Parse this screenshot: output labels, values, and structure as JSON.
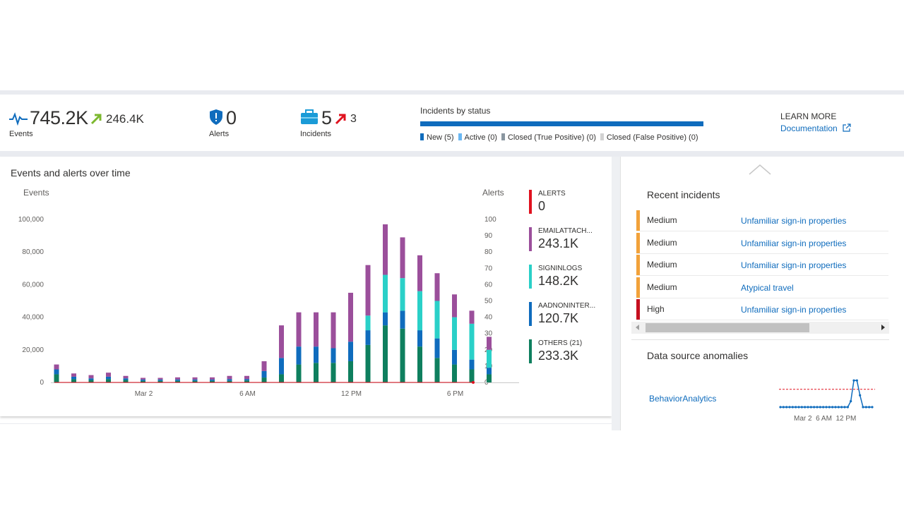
{
  "summary": {
    "events": {
      "value": "745.2K",
      "delta": "246.4K",
      "label": "Events"
    },
    "alerts": {
      "value": "0",
      "label": "Alerts"
    },
    "incidents": {
      "value": "5",
      "delta": "3",
      "label": "Incidents"
    }
  },
  "status": {
    "title": "Incidents by status",
    "legend": [
      {
        "label": "New (5)",
        "color": "#0f6cbd"
      },
      {
        "label": "Active (0)",
        "color": "#6ab7f2"
      },
      {
        "label": "Closed (True Positive) (0)",
        "color": "#8a96a0"
      },
      {
        "label": "Closed (False Positive) (0)",
        "color": "#d2d2d2"
      }
    ]
  },
  "learn_more": {
    "heading": "LEARN MORE",
    "link": "Documentation"
  },
  "events_panel": {
    "title": "Events and alerts over time"
  },
  "chart_data": {
    "type": "bar",
    "stacked": true,
    "ylabel_left": "Events",
    "ylabel_right": "Alerts",
    "ylim_left": [
      0,
      100000
    ],
    "ylim_right": [
      0,
      100
    ],
    "yticks_left": [
      "100,000",
      "80,000",
      "60,000",
      "40,000",
      "20,000",
      "0"
    ],
    "yticks_right": [
      "100",
      "90",
      "80",
      "70",
      "60",
      "50",
      "40",
      "30",
      "20",
      "10",
      "0"
    ],
    "xticks": [
      {
        "index": 5,
        "label": "Mar 2"
      },
      {
        "index": 11,
        "label": "6 AM"
      },
      {
        "index": 17,
        "label": "12 PM"
      },
      {
        "index": 23,
        "label": "6 PM"
      }
    ],
    "series": [
      {
        "name": "OTHERS (21)",
        "color": "#0e7f5e",
        "values": [
          5000,
          2000,
          1500,
          2000,
          1500,
          1000,
          1000,
          1000,
          1000,
          1000,
          1000,
          1200,
          3000,
          5000,
          11000,
          12000,
          12000,
          13000,
          23000,
          35000,
          33000,
          22000,
          15000,
          11000,
          8000,
          5000
        ]
      },
      {
        "name": "AADNONINTER...",
        "color": "#0f6cbd",
        "values": [
          3000,
          1500,
          1000,
          1500,
          1000,
          800,
          800,
          800,
          800,
          800,
          1000,
          800,
          4000,
          10000,
          11000,
          10000,
          9000,
          12000,
          9000,
          8000,
          11000,
          10000,
          12000,
          9000,
          6000,
          4000
        ]
      },
      {
        "name": "SIGNINLOGS",
        "color": "#2ad0c8",
        "values": [
          0,
          0,
          0,
          0,
          0,
          0,
          0,
          0,
          0,
          0,
          0,
          0,
          0,
          0,
          0,
          0,
          0,
          0,
          9000,
          23000,
          20000,
          24000,
          23000,
          20000,
          22000,
          11000
        ]
      },
      {
        "name": "EMAILATTACH...",
        "color": "#9b4f9b",
        "values": [
          3000,
          2000,
          2000,
          2500,
          1500,
          1000,
          1000,
          1300,
          1300,
          1300,
          2000,
          2000,
          6000,
          20000,
          21000,
          21000,
          22000,
          30000,
          31000,
          31000,
          25000,
          22000,
          17000,
          14000,
          8000,
          8000
        ]
      }
    ],
    "alerts_series": {
      "name": "ALERTS",
      "color": "#e0121f",
      "values": [
        0
      ]
    }
  },
  "legend": [
    {
      "name": "ALERTS",
      "value": "0",
      "color": "#e0121f"
    },
    {
      "name": "EMAILATTACH...",
      "value": "243.1K",
      "color": "#9b4f9b"
    },
    {
      "name": "SIGNINLOGS",
      "value": "148.2K",
      "color": "#2ad0c8"
    },
    {
      "name": "AADNONINTER...",
      "value": "120.7K",
      "color": "#0f6cbd"
    },
    {
      "name": "OTHERS (21)",
      "value": "233.3K",
      "color": "#0e7f5e"
    }
  ],
  "recent": {
    "title": "Recent incidents",
    "rows": [
      {
        "severity": "Medium",
        "name": "Unfamiliar sign-in properties",
        "color": "#f2a23a"
      },
      {
        "severity": "Medium",
        "name": "Unfamiliar sign-in properties",
        "color": "#f2a23a"
      },
      {
        "severity": "Medium",
        "name": "Unfamiliar sign-in properties",
        "color": "#f2a23a"
      },
      {
        "severity": "Medium",
        "name": "Atypical travel",
        "color": "#f2a23a"
      },
      {
        "severity": "High",
        "name": "Unfamiliar sign-in properties",
        "color": "#c50f1f"
      }
    ]
  },
  "anomalies": {
    "title": "Data source anomalies",
    "source": "BehaviorAnalytics",
    "ticks": [
      "Mar 2",
      "6 AM",
      "12 PM"
    ],
    "values": [
      0,
      0,
      0,
      0,
      0,
      0,
      0,
      0,
      0,
      0,
      0,
      0,
      0,
      0,
      0,
      0,
      0,
      0,
      0,
      0,
      0,
      0,
      0,
      2,
      9,
      9,
      4,
      0,
      0,
      0,
      0
    ],
    "threshold": 6
  }
}
